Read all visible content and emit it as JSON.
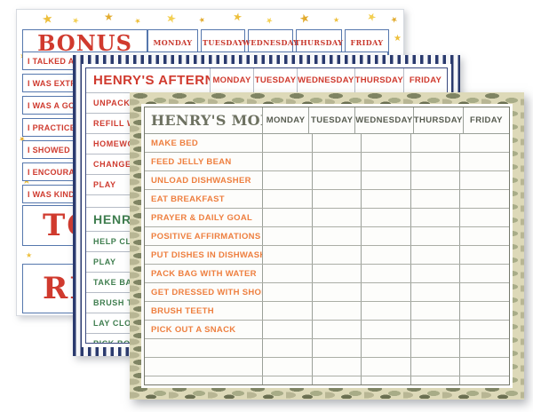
{
  "page": {
    "background_color": "#ffffff"
  },
  "colors": {
    "red": "#d03a2e",
    "orange": "#ee7f3f",
    "green": "#3e7d4e",
    "navy_stripe": "#2a3a6e",
    "blue_table_border": "#5577ad",
    "olive_title": "#6d7160",
    "camo_olive": "#7f8463",
    "camo_tan": "#ddd9b8",
    "star_yellow": "#edbf3b"
  },
  "icons": {
    "star": "★"
  },
  "bonus_chart": {
    "title": "BONUS",
    "days": [
      "MONDAY",
      "TUESDAY",
      "WEDNESDAY",
      "THURSDAY",
      "FRIDAY"
    ],
    "tasks": [
      "I TALKED ABOUT MY FEELINGS",
      "I WAS EXTRA",
      "I WAS A GOOD",
      "I PRACTICED",
      "I SHOWED S",
      "I ENCOURAG",
      "I WAS KIND"
    ],
    "total_label": "TOTAL",
    "reward_label": "REWARD"
  },
  "afternoon_chart": {
    "title": "HENRY'S AFTERNOON",
    "days": [
      "MONDAY",
      "TUESDAY",
      "WEDNESDAY",
      "THURSDAY",
      "FRIDAY"
    ],
    "tasks": [
      "UNPACK BACKPACK",
      "REFILL WATER",
      "HOMEWORK",
      "CHANGE INTO",
      "PLAY"
    ],
    "evening_title": "HENRY'S",
    "evening_tasks": [
      "HELP CLEAR",
      "PLAY",
      "TAKE BATH",
      "BRUSH TEETH",
      "LAY CLOTHES",
      "PICK BOOKS"
    ]
  },
  "morning_chart": {
    "title": "HENRY'S MORNING",
    "days": [
      "MONDAY",
      "TUESDAY",
      "WEDNESDAY",
      "THURSDAY",
      "FRIDAY"
    ],
    "tasks": [
      "MAKE BED",
      "FEED JELLY BEAN",
      "UNLOAD DISHWASHER",
      "EAT BREAKFAST",
      "PRAYER & DAILY GOAL",
      "POSITIVE AFFIRMATIONS",
      "PUT DISHES IN DISHWASHER",
      "PACK BAG WITH WATER",
      "GET DRESSED WITH SHOES",
      "BRUSH TEETH",
      "PICK OUT A SNACK"
    ],
    "empty_rows": 3
  }
}
